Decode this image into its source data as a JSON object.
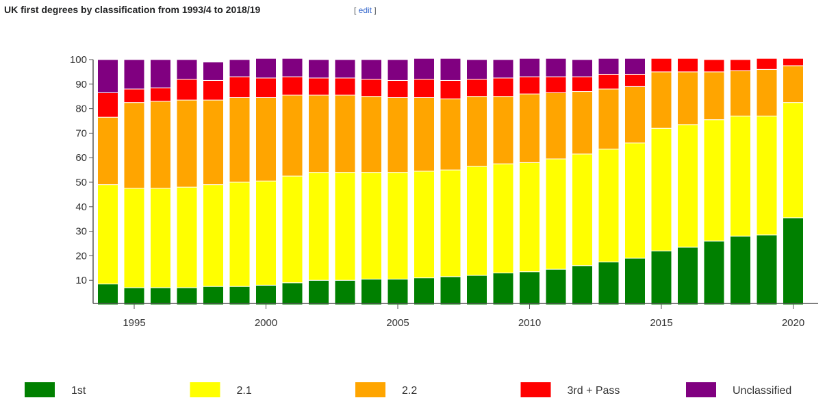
{
  "header": {
    "title": "UK first degrees by classification from 1993/4 to 2018/19",
    "edit_open": "[ ",
    "edit_label": "edit",
    "edit_close": " ]"
  },
  "chart_data": {
    "type": "bar",
    "stacked": true,
    "title": "",
    "xlabel": "",
    "ylabel": "",
    "ylim": [
      0,
      100
    ],
    "xlim": [
      1993.5,
      2021
    ],
    "yticks": [
      10,
      20,
      30,
      40,
      50,
      60,
      70,
      80,
      90,
      100
    ],
    "xticks": [
      1995,
      2000,
      2005,
      2010,
      2015,
      2020
    ],
    "grid": false,
    "legend_position": "bottom",
    "x": [
      1994,
      1995,
      1996,
      1997,
      1998,
      1999,
      2000,
      2001,
      2002,
      2003,
      2004,
      2005,
      2006,
      2007,
      2008,
      2009,
      2010,
      2011,
      2012,
      2013,
      2014,
      2015,
      2016,
      2017,
      2018,
      2019,
      2020
    ],
    "series": [
      {
        "name": "1st",
        "color": "#008000",
        "values": [
          8.5,
          7,
          7,
          7,
          7.5,
          7.5,
          8,
          9,
          10,
          10,
          10.5,
          10.5,
          11,
          11.5,
          12,
          13,
          13.5,
          14.5,
          16,
          17.5,
          19,
          22,
          23.5,
          26,
          28,
          28.5,
          35.5
        ]
      },
      {
        "name": "2.1",
        "color": "#ffff00",
        "values": [
          40.5,
          40.5,
          40.5,
          41,
          41.5,
          42.5,
          42.5,
          43.5,
          44,
          44,
          43.5,
          43.5,
          43.5,
          43.5,
          44.5,
          44.5,
          44.5,
          45,
          45.5,
          46,
          47,
          50,
          50,
          49.5,
          49,
          48.5,
          47
        ]
      },
      {
        "name": "2.2",
        "color": "#ffa500",
        "values": [
          27.5,
          35,
          35.5,
          35.5,
          34.5,
          34.5,
          34,
          33,
          31.5,
          31.5,
          31,
          30.5,
          30,
          29,
          28.5,
          27.5,
          28,
          27,
          25.5,
          24.5,
          23,
          23,
          21.5,
          19.5,
          18.5,
          19,
          15
        ]
      },
      {
        "name": "3rd + Pass",
        "color": "#ff0000",
        "values": [
          10,
          5.5,
          5.5,
          8.5,
          8,
          8.5,
          8,
          7.5,
          7,
          7,
          7,
          7,
          7.5,
          7.5,
          7,
          7.5,
          7,
          6.5,
          6,
          6,
          5,
          5.5,
          5.5,
          5,
          4.5,
          4.5,
          3
        ]
      },
      {
        "name": "Unclassified",
        "color": "#800080",
        "values": [
          13.5,
          12,
          11.5,
          8,
          7.5,
          7,
          8,
          7.5,
          7.5,
          7.5,
          8,
          8.5,
          8.5,
          9,
          8,
          7.5,
          7.5,
          7.5,
          7,
          6.5,
          6.5,
          0,
          0,
          0,
          0,
          0,
          0
        ]
      }
    ]
  }
}
